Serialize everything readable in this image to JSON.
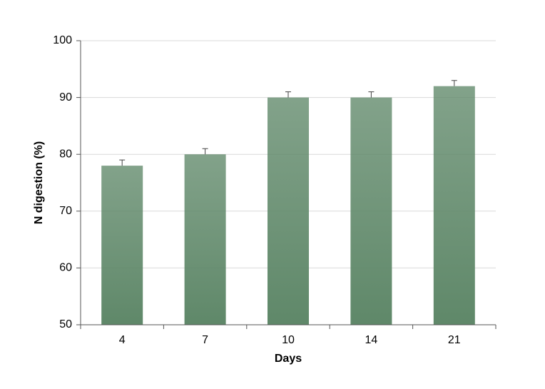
{
  "chart_data": {
    "type": "bar",
    "categories": [
      "4",
      "7",
      "10",
      "14",
      "21"
    ],
    "values": [
      78,
      80,
      90,
      90,
      92
    ],
    "errors": [
      1,
      1,
      1,
      1,
      1
    ],
    "color": "#5f8869",
    "xlabel": "Days",
    "ylabel": "N digestion (%)",
    "ylim": [
      50,
      100
    ],
    "yticks": [
      50,
      60,
      70,
      80,
      90,
      100
    ],
    "grid": true
  }
}
